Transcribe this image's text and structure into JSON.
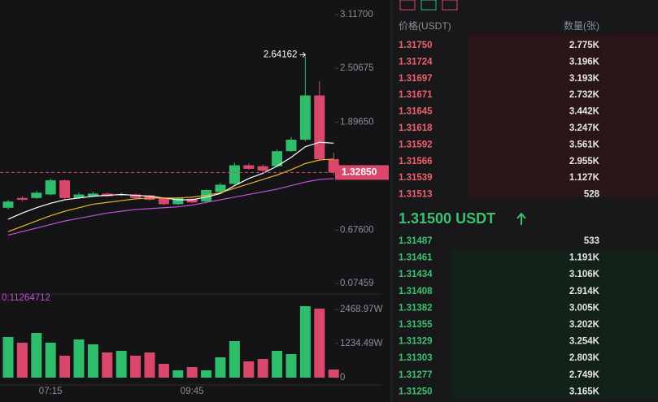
{
  "chart_data": {
    "type": "candlestick",
    "categories": [
      null,
      null,
      null,
      "07:15",
      null,
      null,
      null,
      null,
      null,
      null,
      null,
      null,
      null,
      "09:45",
      null,
      null,
      null,
      null,
      null,
      null,
      null,
      null,
      null,
      null
    ],
    "open": [
      0.93,
      1.04,
      1.04,
      1.08,
      1.24,
      1.04,
      1.06,
      1.09,
      1.07,
      1.08,
      1.07,
      1.04,
      0.97,
      1.03,
      1.0,
      1.11,
      1.2,
      1.41,
      1.4,
      1.4,
      1.57,
      1.7,
      2.2,
      1.48
    ],
    "high": [
      1.02,
      1.06,
      1.12,
      1.26,
      1.25,
      1.1,
      1.11,
      1.1,
      1.1,
      1.09,
      1.08,
      1.05,
      1.05,
      1.04,
      1.14,
      1.21,
      1.44,
      1.43,
      1.42,
      1.59,
      1.73,
      2.64162,
      2.36,
      1.55
    ],
    "low": [
      0.91,
      1.0,
      1.03,
      1.07,
      1.03,
      1.03,
      1.05,
      1.05,
      1.06,
      1.03,
      1.01,
      0.96,
      0.96,
      0.98,
      0.99,
      1.1,
      1.19,
      1.36,
      1.34,
      1.39,
      1.56,
      1.68,
      1.46,
      1.3
    ],
    "close": [
      1.0,
      1.02,
      1.1,
      1.24,
      1.04,
      1.08,
      1.09,
      1.06,
      1.08,
      1.04,
      1.02,
      0.97,
      1.04,
      0.99,
      1.13,
      1.19,
      1.41,
      1.37,
      1.35,
      1.57,
      1.7,
      2.2,
      1.48,
      1.3285
    ],
    "up_color": "#2ebd6b",
    "down_color": "#d9486b",
    "ylim": [
      0,
      3.28
    ],
    "yticks": [
      {
        "value": 3.117,
        "label": "3.11700"
      },
      2.50675,
      {
        "value": 1.8965,
        "label": "1.89650"
      },
      {
        "value": 0.676,
        "label": "0.67600"
      },
      0.07459
    ],
    "high_label": "2.64162",
    "current_price": {
      "value": 1.3285,
      "label": "1.32850"
    },
    "lines": [
      {
        "color": "#ffffff",
        "values": [
          0.8,
          0.87,
          0.93,
          0.98,
          1.02,
          1.04,
          1.06,
          1.07,
          1.08,
          1.07,
          1.06,
          1.04,
          1.02,
          1.02,
          1.05,
          1.09,
          1.18,
          1.26,
          1.32,
          1.4,
          1.5,
          1.62,
          1.67,
          1.66
        ]
      },
      {
        "color": "#e8b22c",
        "values": [
          0.66,
          0.72,
          0.78,
          0.84,
          0.89,
          0.93,
          0.97,
          0.99,
          1.01,
          1.03,
          1.04,
          1.04,
          1.04,
          1.05,
          1.07,
          1.1,
          1.15,
          1.2,
          1.25,
          1.3,
          1.36,
          1.43,
          1.47,
          1.48
        ]
      },
      {
        "color": "#c352d6",
        "values": [
          0.62,
          0.66,
          0.7,
          0.74,
          0.78,
          0.81,
          0.84,
          0.87,
          0.89,
          0.91,
          0.92,
          0.93,
          0.94,
          0.96,
          0.99,
          1.02,
          1.05,
          1.08,
          1.11,
          1.14,
          1.18,
          1.22,
          1.25,
          1.26
        ]
      }
    ],
    "volume": {
      "label": "0:11264712",
      "values": [
        1470,
        1264,
        1617,
        1264,
        794,
        1381,
        1205,
        911,
        970,
        794,
        911,
        500,
        265,
        382,
        265,
        735,
        1323,
        588,
        676,
        970,
        852,
        2586,
        2498,
        294
      ],
      "ylim": [
        0,
        3086
      ],
      "yticks": [
        {
          "value": 2468.97,
          "label": "2468.97W"
        },
        {
          "value": 1234.49,
          "label": "1234.49W"
        },
        0
      ]
    }
  },
  "order_book": {
    "headers": [
      "价格(USDT)",
      "数量(张)"
    ],
    "asks": [
      [
        "1.31750",
        "2.775K"
      ],
      [
        "1.31724",
        "3.196K"
      ],
      [
        "1.31697",
        "3.193K"
      ],
      [
        "1.31671",
        "2.732K"
      ],
      [
        "1.31645",
        "3.442K"
      ],
      [
        "1.31618",
        "3.247K"
      ],
      [
        "1.31592",
        "3.561K"
      ],
      [
        "1.31566",
        "2.955K"
      ],
      [
        "1.31539",
        "1.127K"
      ],
      [
        "1.31513",
        "528"
      ]
    ],
    "last_price": "1.31500 USDT",
    "bids": [
      [
        "1.31487",
        "533"
      ],
      [
        "1.31461",
        "1.191K"
      ],
      [
        "1.31434",
        "3.106K"
      ],
      [
        "1.31408",
        "2.914K"
      ],
      [
        "1.31382",
        "3.005K"
      ],
      [
        "1.31355",
        "3.202K"
      ],
      [
        "1.31329",
        "3.254K"
      ],
      [
        "1.31303",
        "2.803K"
      ],
      [
        "1.31277",
        "2.749K"
      ],
      [
        "1.31250",
        "3.165K"
      ]
    ]
  }
}
